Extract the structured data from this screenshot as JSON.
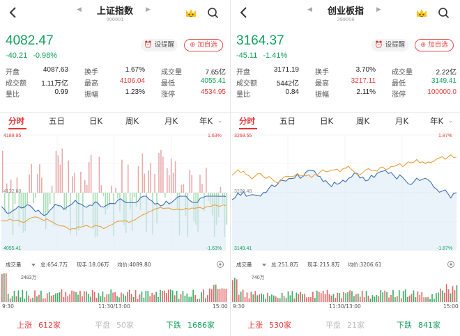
{
  "panels": [
    {
      "title": "上证指数",
      "code": "000001",
      "price": "4082.47",
      "change": "-40.21",
      "change_pct": "-0.98%",
      "remind_label": "设提醒",
      "add_label": "加自选",
      "stats": [
        [
          {
            "label": "开盘",
            "value": "4087.63",
            "color": "default"
          },
          {
            "label": "换手",
            "value": "1.67%",
            "color": "default"
          },
          {
            "label": "成交量",
            "value": "7.65亿",
            "color": "default"
          }
        ],
        [
          {
            "label": "成交额",
            "value": "1.11万亿",
            "color": "default"
          },
          {
            "label": "最高",
            "value": "4106.04",
            "color": "red"
          },
          {
            "label": "最低",
            "value": "4055.41",
            "color": "green"
          }
        ],
        [
          {
            "label": "量比",
            "value": "0.99",
            "color": "default"
          },
          {
            "label": "振幅",
            "value": "1.23%",
            "color": "default"
          },
          {
            "label": "涨停",
            "value": "4534.95",
            "color": "red"
          }
        ]
      ],
      "tabs": [
        "分时",
        "五日",
        "日K",
        "周K",
        "月K",
        "年K"
      ],
      "chart": {
        "top": "4189.95",
        "mid": "4122.68",
        "bottom": "4055.41",
        "top_pct": "1.63%",
        "bottom_pct": "-1.63%"
      },
      "vol": {
        "label": "成交量",
        "total": "总:654.7万",
        "now": "现手:18.06万",
        "avg": "均价:4089.80",
        "scale": "2483万"
      },
      "times": [
        "9:30",
        "11:30/13:00",
        "15:00"
      ],
      "footer": {
        "up_label": "上涨",
        "up": "612家",
        "flat_label": "平盘",
        "flat": "50家",
        "down_label": "下跌",
        "down": "1686家"
      },
      "accent": "#e63232",
      "down_color": "#12a05a"
    },
    {
      "title": "创业板指",
      "code": "399006",
      "price": "3164.37",
      "change": "-45.11",
      "change_pct": "-1.41%",
      "remind_label": "设提醒",
      "add_label": "加自选",
      "stats": [
        [
          {
            "label": "开盘",
            "value": "3171.19",
            "color": "default"
          },
          {
            "label": "换手",
            "value": "3.70%",
            "color": "default"
          },
          {
            "label": "成交量",
            "value": "2.22亿",
            "color": "default"
          }
        ],
        [
          {
            "label": "成交额",
            "value": "5442亿",
            "color": "default"
          },
          {
            "label": "最高",
            "value": "3217.11",
            "color": "red"
          },
          {
            "label": "最低",
            "value": "3149.41",
            "color": "green"
          }
        ],
        [
          {
            "label": "量比",
            "value": "0.84",
            "color": "default"
          },
          {
            "label": "振幅",
            "value": "2.11%",
            "color": "default"
          },
          {
            "label": "涨停",
            "value": "100000.0",
            "color": "red"
          }
        ]
      ],
      "tabs": [
        "分时",
        "五日",
        "日K",
        "周K",
        "月K",
        "年K"
      ],
      "chart": {
        "top": "3269.55",
        "mid": "3209.48",
        "bottom": "3149.41",
        "top_pct": "1.87%",
        "bottom_pct": "-1.87%"
      },
      "vol": {
        "label": "成交量",
        "total": "总:251.8万",
        "now": "现手:215.8万",
        "avg": "均价:3206.61",
        "scale": "740万"
      },
      "times": [
        "9:30",
        "11:30/13:00",
        "15:00"
      ],
      "footer": {
        "up_label": "上涨",
        "up": "530家",
        "flat_label": "平盘",
        "flat": "21家",
        "down_label": "下跌",
        "down": "841家"
      },
      "accent": "#e63232",
      "down_color": "#12a05a"
    }
  ]
}
